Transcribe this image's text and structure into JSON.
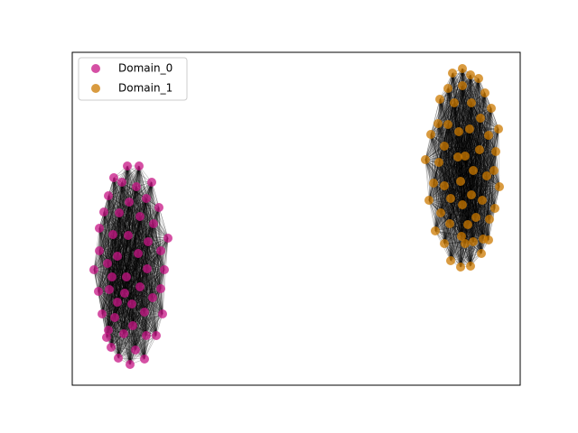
{
  "chart_data": {
    "type": "scatter",
    "xlim": [
      0,
      496
    ],
    "ylim": [
      0,
      369
    ],
    "legend": "upper left",
    "series": [
      {
        "name": "Domain_0",
        "color": "#c71585",
        "x": [
          61,
          74,
          46,
          55,
          71,
          88,
          40,
          63,
          82,
          96,
          35,
          52,
          75,
          90,
          30,
          106,
          45,
          62,
          84,
          98,
          30,
          50,
          73,
          39,
          24,
          102,
          60,
          83,
          44,
          98,
          29,
          41,
          75,
          58,
          89,
          50,
          66,
          80,
          33,
          100,
          47,
          67,
          40,
          57,
          82,
          93,
          38,
          70,
          51,
          64,
          80,
          43
        ],
        "values": [
          243,
          243,
          230,
          225,
          220,
          225,
          210,
          203,
          207,
          197,
          192,
          191,
          187,
          179,
          174,
          163,
          167,
          166,
          159,
          149,
          149,
          143,
          146,
          135,
          128,
          128,
          120,
          129,
          120,
          107,
          104,
          106,
          109,
          102,
          97,
          92,
          90,
          81,
          79,
          79,
          75,
          66,
          61,
          57,
          55,
          55,
          53,
          39,
          30,
          23,
          29,
          42
        ]
      },
      {
        "name": "Domain_1",
        "color": "#cc7a00",
        "x": [
          432,
          421,
          441,
          450,
          432,
          416,
          457,
          407,
          423,
          442,
          464,
          452,
          405,
          416,
          428,
          440,
          472,
          397,
          461,
          412,
          451,
          469,
          427,
          435,
          391,
          406,
          444,
          467,
          459,
          400,
          412,
          430,
          473,
          442,
          419,
          395,
          454,
          432,
          468,
          408,
          447,
          462,
          418,
          438,
          402,
          431,
          455,
          461,
          412,
          435,
          444,
          453,
          419,
          430,
          441
        ],
        "values": [
          351,
          346,
          344,
          340,
          332,
          329,
          324,
          317,
          313,
          313,
          307,
          296,
          290,
          289,
          281,
          284,
          284,
          278,
          277,
          265,
          261,
          259,
          253,
          254,
          250,
          247,
          238,
          238,
          232,
          224,
          221,
          226,
          220,
          211,
          207,
          205,
          205,
          200,
          196,
          191,
          186,
          184,
          179,
          178,
          171,
          165,
          162,
          161,
          157,
          157,
          159,
          146,
          138,
          131,
          132
        ]
      }
    ]
  }
}
